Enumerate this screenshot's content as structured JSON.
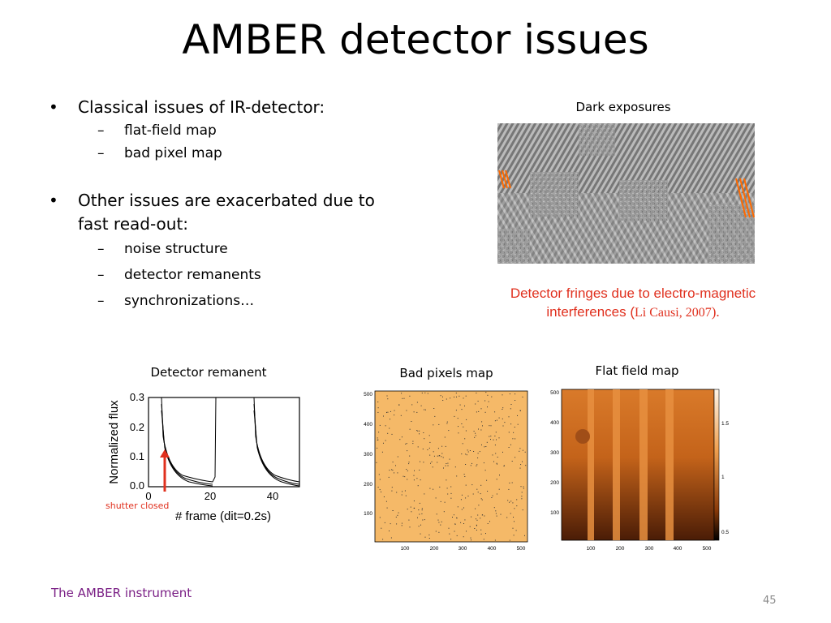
{
  "slide": {
    "title": "AMBER detector issues",
    "bullets": [
      {
        "text": "Classical issues of IR-detector:",
        "subs": [
          "flat-field map",
          "bad pixel map"
        ]
      },
      {
        "text": "Other issues are exacerbated due to fast read-out:",
        "subs": [
          "noise structure",
          "detector remanents",
          "synchronizations…"
        ]
      }
    ],
    "dark_exposures": {
      "caption": "Dark exposures",
      "note_line1": "Detector fringes due to electro-magnetic",
      "note_line2_a": "interferences (",
      "note_line2_b": "Li Causi, 2007",
      "note_line2_c": ")."
    },
    "remanent": {
      "caption": "Detector remanent",
      "ylabel": "Normalized flux",
      "xlabel": "# frame (dit=0.2s)",
      "yticks": [
        "0.3",
        "0.2",
        "0.1",
        "0.0"
      ],
      "xticks": [
        "0",
        "20",
        "40"
      ],
      "annotation": "shutter closed"
    },
    "bad_pixels": {
      "caption": "Bad pixels map",
      "yticks": [
        "500",
        "400",
        "300",
        "200",
        "100"
      ],
      "xticks": [
        "100",
        "200",
        "300",
        "400",
        "500"
      ]
    },
    "flat_field": {
      "caption": "Flat field map",
      "yticks": [
        "500",
        "400",
        "300",
        "200",
        "100"
      ],
      "xticks": [
        "100",
        "200",
        "300",
        "400",
        "500"
      ],
      "colorbar_ticks": [
        "1.5",
        "1",
        "0.5"
      ]
    },
    "footer": "The AMBER instrument",
    "page_number": "45"
  },
  "colors": {
    "accent_red": "#e0301e",
    "footer_purple": "#7a1f85",
    "orange": "#f5b968"
  }
}
